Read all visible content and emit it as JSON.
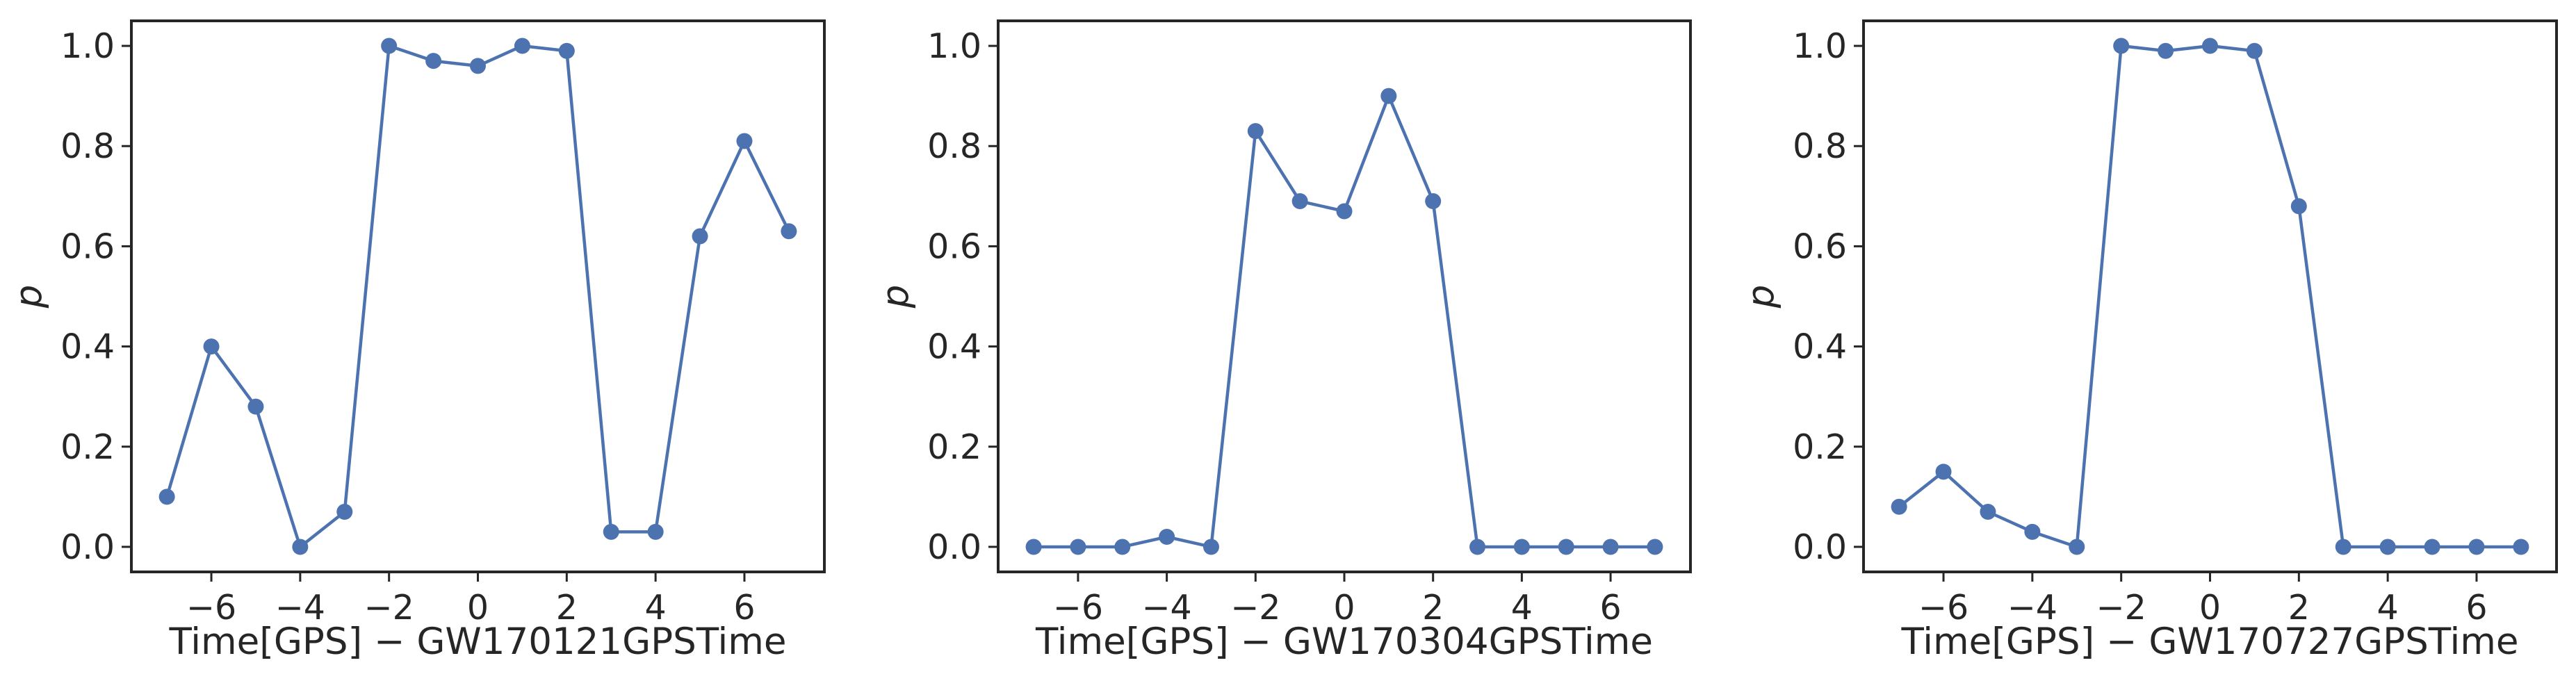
{
  "figure": {
    "line_color": "#4c72b0",
    "axis_color": "#262626",
    "background": "#ffffff"
  },
  "chart_data": [
    {
      "type": "line",
      "xlabel": "Time[GPS] − GW170121GPSTime",
      "ylabel": "p",
      "xlim": [
        -7.8,
        7.8
      ],
      "ylim": [
        -0.05,
        1.05
      ],
      "xticks": [
        -6,
        -4,
        -2,
        0,
        2,
        4,
        6
      ],
      "xtick_labels": [
        "−6",
        "−4",
        "−2",
        "0",
        "2",
        "4",
        "6"
      ],
      "yticks": [
        0.0,
        0.2,
        0.4,
        0.6,
        0.8,
        1.0
      ],
      "ytick_labels": [
        "0.0",
        "0.2",
        "0.4",
        "0.6",
        "0.8",
        "1.0"
      ],
      "grid": false,
      "series": [
        {
          "color": "#4c72b0",
          "x": [
            -7,
            -6,
            -5,
            -4,
            -3,
            -2,
            -1,
            0,
            1,
            2,
            3,
            4,
            5,
            6,
            7
          ],
          "y": [
            0.1,
            0.4,
            0.28,
            0.0,
            0.07,
            1.0,
            0.97,
            0.96,
            1.0,
            0.99,
            0.03,
            0.03,
            0.62,
            0.81,
            0.63
          ]
        }
      ]
    },
    {
      "type": "line",
      "xlabel": "Time[GPS] − GW170304GPSTime",
      "ylabel": "p",
      "xlim": [
        -7.8,
        7.8
      ],
      "ylim": [
        -0.05,
        1.05
      ],
      "xticks": [
        -6,
        -4,
        -2,
        0,
        2,
        4,
        6
      ],
      "xtick_labels": [
        "−6",
        "−4",
        "−2",
        "0",
        "2",
        "4",
        "6"
      ],
      "yticks": [
        0.0,
        0.2,
        0.4,
        0.6,
        0.8,
        1.0
      ],
      "ytick_labels": [
        "0.0",
        "0.2",
        "0.4",
        "0.6",
        "0.8",
        "1.0"
      ],
      "grid": false,
      "series": [
        {
          "color": "#4c72b0",
          "x": [
            -7,
            -6,
            -5,
            -4,
            -3,
            -2,
            -1,
            0,
            1,
            2,
            3,
            4,
            5,
            6,
            7
          ],
          "y": [
            0.0,
            0.0,
            0.0,
            0.02,
            0.0,
            0.83,
            0.69,
            0.67,
            0.9,
            0.69,
            0.0,
            0.0,
            0.0,
            0.0,
            0.0
          ]
        }
      ]
    },
    {
      "type": "line",
      "xlabel": "Time[GPS] − GW170727GPSTime",
      "ylabel": "p",
      "xlim": [
        -7.8,
        7.8
      ],
      "ylim": [
        -0.05,
        1.05
      ],
      "xticks": [
        -6,
        -4,
        -2,
        0,
        2,
        4,
        6
      ],
      "xtick_labels": [
        "−6",
        "−4",
        "−2",
        "0",
        "2",
        "4",
        "6"
      ],
      "yticks": [
        0.0,
        0.2,
        0.4,
        0.6,
        0.8,
        1.0
      ],
      "ytick_labels": [
        "0.0",
        "0.2",
        "0.4",
        "0.6",
        "0.8",
        "1.0"
      ],
      "grid": false,
      "series": [
        {
          "color": "#4c72b0",
          "x": [
            -7,
            -6,
            -5,
            -4,
            -3,
            -2,
            -1,
            0,
            1,
            2,
            3,
            4,
            5,
            6,
            7
          ],
          "y": [
            0.08,
            0.15,
            0.07,
            0.03,
            0.0,
            1.0,
            0.99,
            1.0,
            0.99,
            0.68,
            0.0,
            0.0,
            0.0,
            0.0,
            0.0
          ]
        }
      ]
    }
  ]
}
